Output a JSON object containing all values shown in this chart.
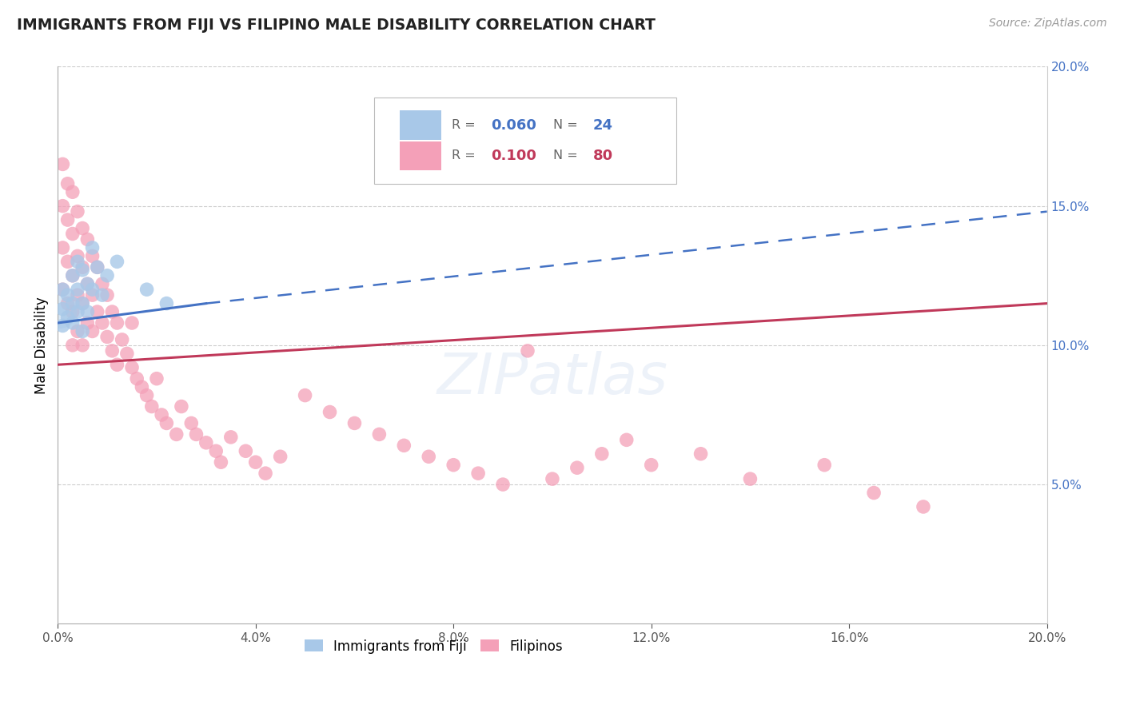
{
  "title": "IMMIGRANTS FROM FIJI VS FILIPINO MALE DISABILITY CORRELATION CHART",
  "source": "Source: ZipAtlas.com",
  "ylabel": "Male Disability",
  "xlim": [
    0.0,
    0.2
  ],
  "ylim": [
    0.0,
    0.2
  ],
  "xtick_vals": [
    0.0,
    0.04,
    0.08,
    0.12,
    0.16,
    0.2
  ],
  "xtick_labels": [
    "0.0%",
    "4.0%",
    "8.0%",
    "12.0%",
    "16.0%",
    "20.0%"
  ],
  "ytick_vals": [
    0.05,
    0.1,
    0.15,
    0.2
  ],
  "ytick_labels": [
    "5.0%",
    "10.0%",
    "15.0%",
    "20.0%"
  ],
  "series1_color": "#a8c8e8",
  "series2_color": "#f4a0b8",
  "trendline1_color": "#4472c4",
  "trendline2_color": "#c0395a",
  "watermark": "ZIPatlas",
  "fiji_x": [
    0.001,
    0.001,
    0.001,
    0.002,
    0.002,
    0.003,
    0.003,
    0.003,
    0.004,
    0.004,
    0.004,
    0.005,
    0.005,
    0.005,
    0.006,
    0.006,
    0.007,
    0.007,
    0.008,
    0.009,
    0.01,
    0.012,
    0.018,
    0.022
  ],
  "fiji_y": [
    0.12,
    0.113,
    0.107,
    0.118,
    0.11,
    0.125,
    0.115,
    0.108,
    0.13,
    0.12,
    0.112,
    0.127,
    0.115,
    0.105,
    0.122,
    0.112,
    0.135,
    0.12,
    0.128,
    0.118,
    0.125,
    0.13,
    0.12,
    0.115
  ],
  "fiji_large_x": [
    0.0005
  ],
  "fiji_large_y": [
    0.112
  ],
  "filipino_x": [
    0.001,
    0.001,
    0.001,
    0.001,
    0.002,
    0.002,
    0.002,
    0.002,
    0.003,
    0.003,
    0.003,
    0.003,
    0.003,
    0.004,
    0.004,
    0.004,
    0.004,
    0.005,
    0.005,
    0.005,
    0.005,
    0.006,
    0.006,
    0.006,
    0.007,
    0.007,
    0.007,
    0.008,
    0.008,
    0.009,
    0.009,
    0.01,
    0.01,
    0.011,
    0.011,
    0.012,
    0.012,
    0.013,
    0.014,
    0.015,
    0.015,
    0.016,
    0.017,
    0.018,
    0.019,
    0.02,
    0.021,
    0.022,
    0.024,
    0.025,
    0.027,
    0.028,
    0.03,
    0.032,
    0.033,
    0.035,
    0.038,
    0.04,
    0.042,
    0.045,
    0.05,
    0.055,
    0.06,
    0.065,
    0.07,
    0.075,
    0.08,
    0.085,
    0.09,
    0.095,
    0.1,
    0.105,
    0.11,
    0.115,
    0.12,
    0.13,
    0.14,
    0.155,
    0.165,
    0.175
  ],
  "filipino_y": [
    0.165,
    0.15,
    0.135,
    0.12,
    0.158,
    0.145,
    0.13,
    0.115,
    0.155,
    0.14,
    0.125,
    0.112,
    0.1,
    0.148,
    0.132,
    0.118,
    0.105,
    0.142,
    0.128,
    0.115,
    0.1,
    0.138,
    0.122,
    0.108,
    0.132,
    0.118,
    0.105,
    0.128,
    0.112,
    0.122,
    0.108,
    0.118,
    0.103,
    0.112,
    0.098,
    0.108,
    0.093,
    0.102,
    0.097,
    0.092,
    0.108,
    0.088,
    0.085,
    0.082,
    0.078,
    0.088,
    0.075,
    0.072,
    0.068,
    0.078,
    0.072,
    0.068,
    0.065,
    0.062,
    0.058,
    0.067,
    0.062,
    0.058,
    0.054,
    0.06,
    0.082,
    0.076,
    0.072,
    0.068,
    0.064,
    0.06,
    0.057,
    0.054,
    0.05,
    0.098,
    0.052,
    0.056,
    0.061,
    0.066,
    0.057,
    0.061,
    0.052,
    0.057,
    0.047,
    0.042
  ],
  "fiji_trend_x0": 0.0,
  "fiji_trend_y0": 0.108,
  "fiji_trend_x_solid_end": 0.03,
  "fiji_trend_y_solid_end": 0.115,
  "fiji_trend_x_dashed_end": 0.2,
  "fiji_trend_y_dashed_end": 0.148,
  "fil_trend_x0": 0.0,
  "fil_trend_y0": 0.093,
  "fil_trend_x_end": 0.2,
  "fil_trend_y_end": 0.115
}
